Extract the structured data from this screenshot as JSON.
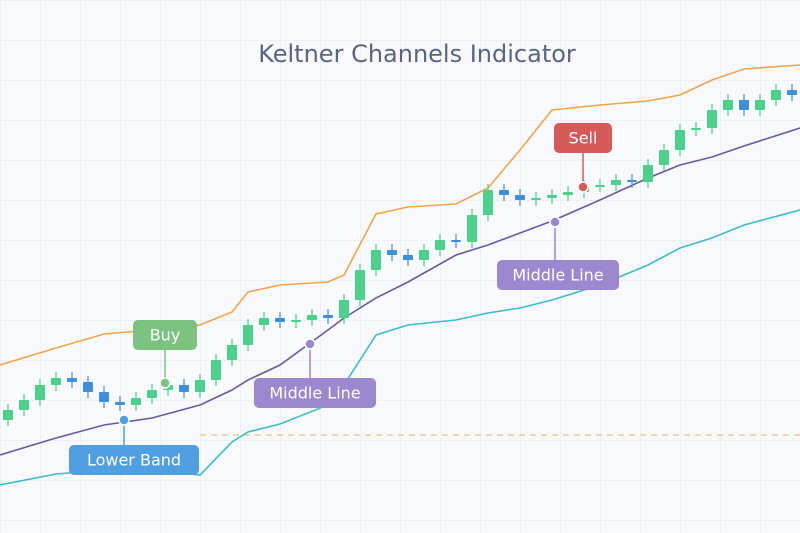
{
  "chart_data": {
    "type": "candlestick",
    "title": "Keltner Channels Indicator",
    "xlim": [
      -0.5,
      49.5
    ],
    "ylim": [
      0,
      533
    ],
    "up_color": "#4cd18a",
    "down_color": "#3f8fe0",
    "open": [
      113,
      123,
      133,
      148,
      155,
      151,
      141,
      131,
      128,
      135,
      143,
      148,
      141,
      153,
      173,
      188,
      208,
      215,
      211,
      213,
      218,
      215,
      233,
      263,
      283,
      278,
      273,
      283,
      293,
      291,
      318,
      343,
      338,
      333,
      335,
      338,
      341,
      347,
      348,
      353,
      351,
      368,
      383,
      403,
      405,
      423,
      433,
      423,
      433,
      443
    ],
    "high": [
      129,
      139,
      154,
      161,
      161,
      157,
      147,
      137,
      141,
      149,
      154,
      154,
      159,
      179,
      194,
      214,
      221,
      221,
      219,
      224,
      224,
      239,
      269,
      289,
      289,
      284,
      289,
      299,
      299,
      324,
      349,
      349,
      344,
      341,
      344,
      347,
      353,
      354,
      359,
      359,
      374,
      389,
      409,
      411,
      429,
      439,
      439,
      439,
      449,
      449
    ],
    "low": [
      107,
      117,
      127,
      142,
      145,
      135,
      125,
      122,
      122,
      129,
      137,
      135,
      135,
      147,
      167,
      182,
      202,
      205,
      205,
      207,
      209,
      209,
      227,
      257,
      272,
      267,
      267,
      277,
      285,
      285,
      312,
      332,
      327,
      327,
      329,
      332,
      335,
      341,
      342,
      345,
      345,
      362,
      377,
      397,
      399,
      417,
      417,
      417,
      427,
      432
    ],
    "close": [
      123,
      133,
      148,
      155,
      151,
      141,
      131,
      128,
      135,
      143,
      148,
      141,
      153,
      173,
      188,
      208,
      215,
      211,
      213,
      218,
      215,
      233,
      263,
      283,
      278,
      273,
      283,
      293,
      291,
      318,
      343,
      338,
      333,
      335,
      338,
      341,
      347,
      348,
      353,
      351,
      368,
      383,
      403,
      405,
      423,
      433,
      423,
      433,
      443,
      438
    ],
    "bands": {
      "x": [
        -0.5,
        3,
        6,
        9,
        12,
        14,
        15,
        17,
        20,
        21,
        23,
        25,
        28,
        30,
        32,
        34,
        37,
        40,
        42,
        44,
        46,
        49.5
      ],
      "series": [
        {
          "color": "#f2a44a",
          "values": [
            168,
            185,
            199,
            203,
            208,
            221,
            241,
            248,
            251,
            258,
            319,
            326,
            329,
            345,
            383,
            423,
            428,
            432,
            438,
            453,
            464,
            468
          ]
        },
        {
          "color": "#6a5aa6",
          "values": [
            78,
            95,
            108,
            115,
            128,
            143,
            153,
            168,
            203,
            215,
            235,
            251,
            278,
            288,
            300,
            312,
            333,
            355,
            368,
            376,
            387,
            405
          ]
        },
        {
          "color": "#3bbccc",
          "values": [
            48,
            59,
            63,
            63,
            58,
            91,
            101,
            109,
            128,
            148,
            198,
            208,
            213,
            220,
            225,
            233,
            248,
            268,
            285,
            295,
            308,
            323
          ]
        }
      ]
    },
    "annotations": [
      {
        "text": "Buy",
        "color": "#7cc281"
      },
      {
        "text": "Sell",
        "color": "#d65a5a"
      },
      {
        "text": "Middle Line",
        "color": "#9c88cf"
      },
      {
        "text": "Middle Line",
        "color": "#9c88cf"
      },
      {
        "text": "Lower Band",
        "color": "#4f9fe2"
      }
    ]
  }
}
